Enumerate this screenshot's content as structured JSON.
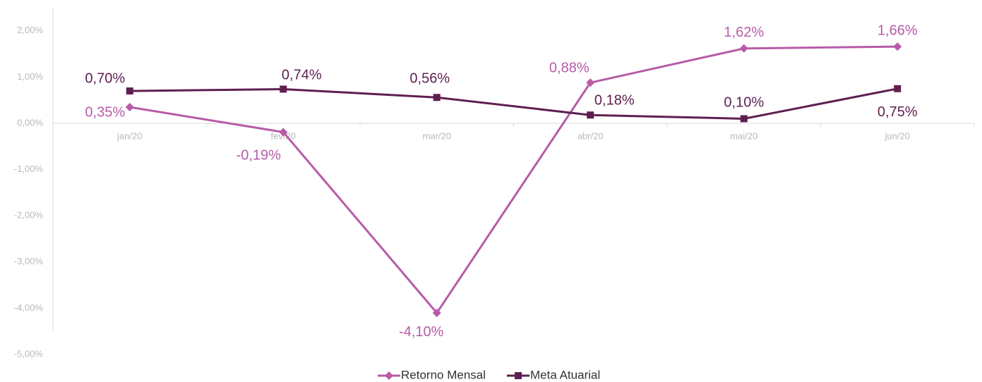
{
  "chart_data": {
    "type": "line",
    "categories": [
      "jan/20",
      "fev/20",
      "mar/20",
      "abr/20",
      "mai/20",
      "jun/20"
    ],
    "series": [
      {
        "name": "Retorno Mensal",
        "color": "#b75ba8",
        "marker": "diamond",
        "values": [
          0.35,
          -0.19,
          -4.1,
          0.88,
          1.62,
          1.66
        ],
        "value_labels": [
          "0,35%",
          "-0,19%",
          "-4,10%",
          "0,88%",
          "1,62%",
          "1,66%"
        ]
      },
      {
        "name": "Meta Atuarial",
        "color": "#5e1f50",
        "marker": "square",
        "values": [
          0.7,
          0.74,
          0.56,
          0.18,
          0.1,
          0.75
        ],
        "value_labels": [
          "0,70%",
          "0,74%",
          "0,56%",
          "0,18%",
          "0,10%",
          "0,75%"
        ]
      }
    ],
    "ylim": [
      -5,
      2.5
    ],
    "yticks": [
      {
        "value": 2,
        "label": "2,00%"
      },
      {
        "value": 1,
        "label": "1,00%"
      },
      {
        "value": 0,
        "label": "0,00%"
      },
      {
        "value": -1,
        "label": "-1,00%"
      },
      {
        "value": -2,
        "label": "-2,00%"
      },
      {
        "value": -3,
        "label": "-3,00%"
      },
      {
        "value": -4,
        "label": "-4,00%"
      },
      {
        "value": -5,
        "label": "-5,00%"
      }
    ],
    "legend": "bottom"
  }
}
